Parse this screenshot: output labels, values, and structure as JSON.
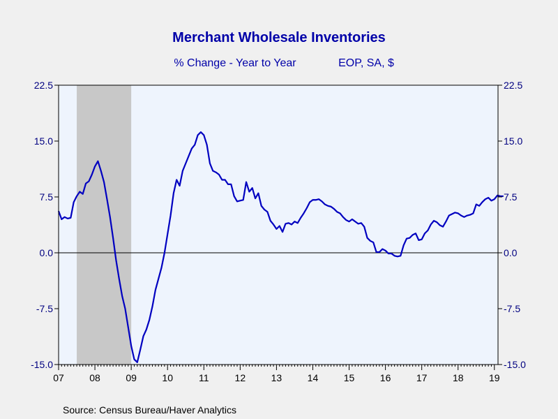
{
  "colors": {
    "background": "#f0f0f0",
    "plot_background": "#eef4fd",
    "title": "#0000a8",
    "axis_text": "#000080",
    "series": "#0000c0",
    "recession": "#c8c8c8"
  },
  "chart_data": {
    "type": "line",
    "title": "Merchant Wholesale Inventories",
    "subtitle_left": "% Change - Year to Year",
    "subtitle_right": "EOP, SA, $",
    "source": "Source:  Census Bureau/Haver Analytics",
    "xlabel": "",
    "ylabel": "",
    "xlim": [
      2007.0,
      2019.1
    ],
    "ylim": [
      -15.0,
      22.5
    ],
    "y_ticks": [
      -15.0,
      -7.5,
      0.0,
      7.5,
      15.0,
      22.5
    ],
    "y_tick_labels": [
      "-15.0",
      "-7.5",
      "0.0",
      "7.5",
      "15.0",
      "22.5"
    ],
    "x_ticks": [
      2007,
      2008,
      2009,
      2010,
      2011,
      2012,
      2013,
      2014,
      2015,
      2016,
      2017,
      2018,
      2019
    ],
    "x_tick_labels": [
      "07",
      "08",
      "09",
      "10",
      "11",
      "12",
      "13",
      "14",
      "15",
      "16",
      "17",
      "18",
      "19"
    ],
    "y_axis_both_sides": true,
    "zero_line": true,
    "grid": false,
    "legend": "none",
    "recession_shading": [
      {
        "start": 2007.5,
        "end": 2009.0
      }
    ],
    "series": [
      {
        "x_start": 2007.0,
        "x_step_months": 1,
        "values": [
          5.6,
          4.5,
          4.8,
          4.6,
          4.7,
          6.8,
          7.6,
          8.2,
          7.9,
          9.3,
          9.6,
          10.5,
          11.6,
          12.3,
          11.0,
          9.5,
          7.2,
          4.8,
          2.0,
          -1.0,
          -3.5,
          -5.8,
          -7.5,
          -10.0,
          -12.5,
          -14.3,
          -14.7,
          -13.0,
          -11.2,
          -10.3,
          -9.0,
          -7.2,
          -5.0,
          -3.5,
          -2.0,
          0.0,
          2.5,
          5.0,
          8.0,
          9.8,
          9.0,
          11.0,
          12.0,
          13.0,
          14.0,
          14.5,
          15.8,
          16.2,
          15.8,
          14.5,
          12.0,
          11.0,
          10.8,
          10.5,
          9.8,
          9.8,
          9.2,
          9.2,
          7.6,
          6.9,
          7.0,
          7.1,
          9.5,
          8.2,
          8.7,
          7.3,
          8.0,
          6.3,
          5.8,
          5.5,
          4.3,
          3.8,
          3.2,
          3.6,
          2.8,
          3.9,
          4.0,
          3.8,
          4.2,
          4.0,
          4.7,
          5.3,
          6.0,
          6.8,
          7.1,
          7.1,
          7.2,
          6.9,
          6.5,
          6.3,
          6.2,
          5.9,
          5.5,
          5.3,
          4.8,
          4.4,
          4.2,
          4.5,
          4.2,
          3.9,
          4.0,
          3.5,
          2.0,
          1.6,
          1.4,
          0.1,
          0.1,
          0.5,
          0.3,
          -0.1,
          -0.1,
          -0.4,
          -0.5,
          -0.4,
          1.0,
          1.9,
          2.0,
          2.4,
          2.6,
          1.7,
          1.8,
          2.6,
          3.0,
          3.8,
          4.3,
          4.1,
          3.7,
          3.5,
          4.2,
          5.0,
          5.2,
          5.4,
          5.3,
          5.0,
          4.8,
          5.0,
          5.1,
          5.3,
          6.5,
          6.3,
          6.8,
          7.2,
          7.4,
          7.0,
          7.2,
          7.7,
          7.6,
          7.6
        ]
      }
    ]
  }
}
